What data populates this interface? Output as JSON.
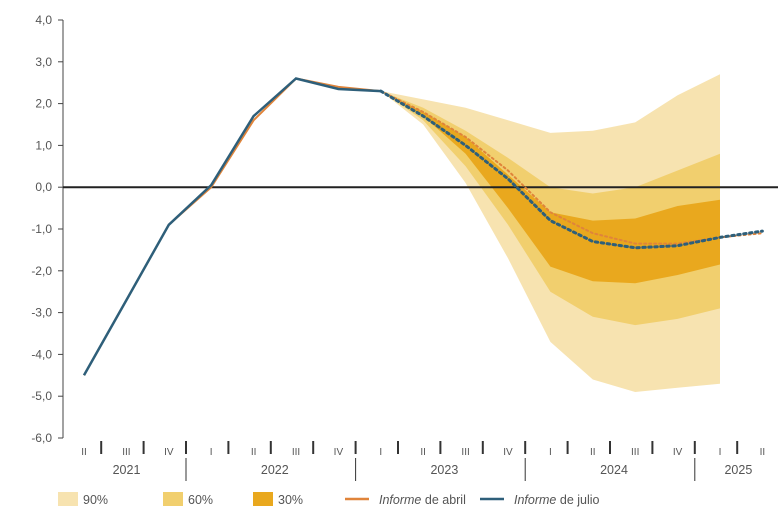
{
  "chart_data": {
    "type": "area",
    "title": "",
    "xlabel": "",
    "ylabel": "",
    "ylim": [
      -6,
      4
    ],
    "yticks": [
      "4,0",
      "3,0",
      "2,0",
      "1,0",
      "0,0",
      "-1,0",
      "-2,0",
      "-3,0",
      "-4,0",
      "-5,0",
      "-6,0"
    ],
    "quarters": [
      {
        "label": "II",
        "year": "2021"
      },
      {
        "label": "III",
        "year": "2021"
      },
      {
        "label": "IV",
        "year": "2021"
      },
      {
        "label": "I",
        "year": "2022"
      },
      {
        "label": "II",
        "year": "2022"
      },
      {
        "label": "III",
        "year": "2022"
      },
      {
        "label": "IV",
        "year": "2022"
      },
      {
        "label": "I",
        "year": "2023"
      },
      {
        "label": "II",
        "year": "2023"
      },
      {
        "label": "III",
        "year": "2023"
      },
      {
        "label": "IV",
        "year": "2023"
      },
      {
        "label": "I",
        "year": "2024"
      },
      {
        "label": "II",
        "year": "2024"
      },
      {
        "label": "III",
        "year": "2024"
      },
      {
        "label": "IV",
        "year": "2024"
      },
      {
        "label": "I",
        "year": "2025"
      },
      {
        "label": "II",
        "year": "2025"
      }
    ],
    "years": [
      "2021",
      "2022",
      "2023",
      "2024",
      "2025"
    ],
    "fan_start_index": 7,
    "series": [
      {
        "name": "Informe de abril",
        "color": "#e0843a",
        "style": "solid-then-dotted",
        "values": [
          -4.5,
          -2.7,
          -0.9,
          0.0,
          1.6,
          2.6,
          2.4,
          2.3,
          1.8,
          1.2,
          0.4,
          -0.6,
          -1.1,
          -1.35,
          -1.35,
          -1.2,
          -1.1
        ]
      },
      {
        "name": "Informe de julio",
        "color": "#2e5f7a",
        "style": "solid-then-dotted",
        "values": [
          -4.5,
          -2.7,
          -0.9,
          0.05,
          1.7,
          2.6,
          2.35,
          2.3,
          1.7,
          1.0,
          0.2,
          -0.8,
          -1.3,
          -1.45,
          -1.4,
          -1.2,
          -1.05
        ]
      }
    ],
    "bands": [
      {
        "name": "90%",
        "color": "#f7e3b0",
        "upper": [
          2.3,
          2.1,
          1.9,
          1.6,
          1.3,
          1.35,
          1.55,
          2.2,
          2.7
        ],
        "lower": [
          2.3,
          1.5,
          0.1,
          -1.7,
          -3.7,
          -4.6,
          -4.9,
          -4.8,
          -4.7
        ]
      },
      {
        "name": "60%",
        "color": "#f1cf6e",
        "upper": [
          2.3,
          1.9,
          1.35,
          0.7,
          0.0,
          -0.15,
          0.0,
          0.4,
          0.8
        ],
        "lower": [
          2.3,
          1.6,
          0.5,
          -0.9,
          -2.5,
          -3.1,
          -3.3,
          -3.15,
          -2.9
        ]
      },
      {
        "name": "30%",
        "color": "#e9a81e",
        "upper": [
          2.3,
          1.8,
          1.2,
          0.3,
          -0.6,
          -0.8,
          -0.75,
          -0.45,
          -0.3
        ],
        "lower": [
          2.3,
          1.7,
          0.8,
          -0.5,
          -1.9,
          -2.25,
          -2.3,
          -2.1,
          -1.85
        ]
      }
    ],
    "legend": [
      {
        "label": "90%",
        "type": "swatch",
        "color": "#f7e3b0"
      },
      {
        "label": "60%",
        "type": "swatch",
        "color": "#f1cf6e"
      },
      {
        "label": "30%",
        "type": "swatch",
        "color": "#e9a81e"
      },
      {
        "label_italic": "Informe",
        "label_rest": " de abril",
        "type": "line",
        "color": "#e0843a"
      },
      {
        "label_italic": "Informe",
        "label_rest": " de julio",
        "type": "line",
        "color": "#2e5f7a"
      }
    ],
    "legend_position": "bottom",
    "grid": false
  }
}
